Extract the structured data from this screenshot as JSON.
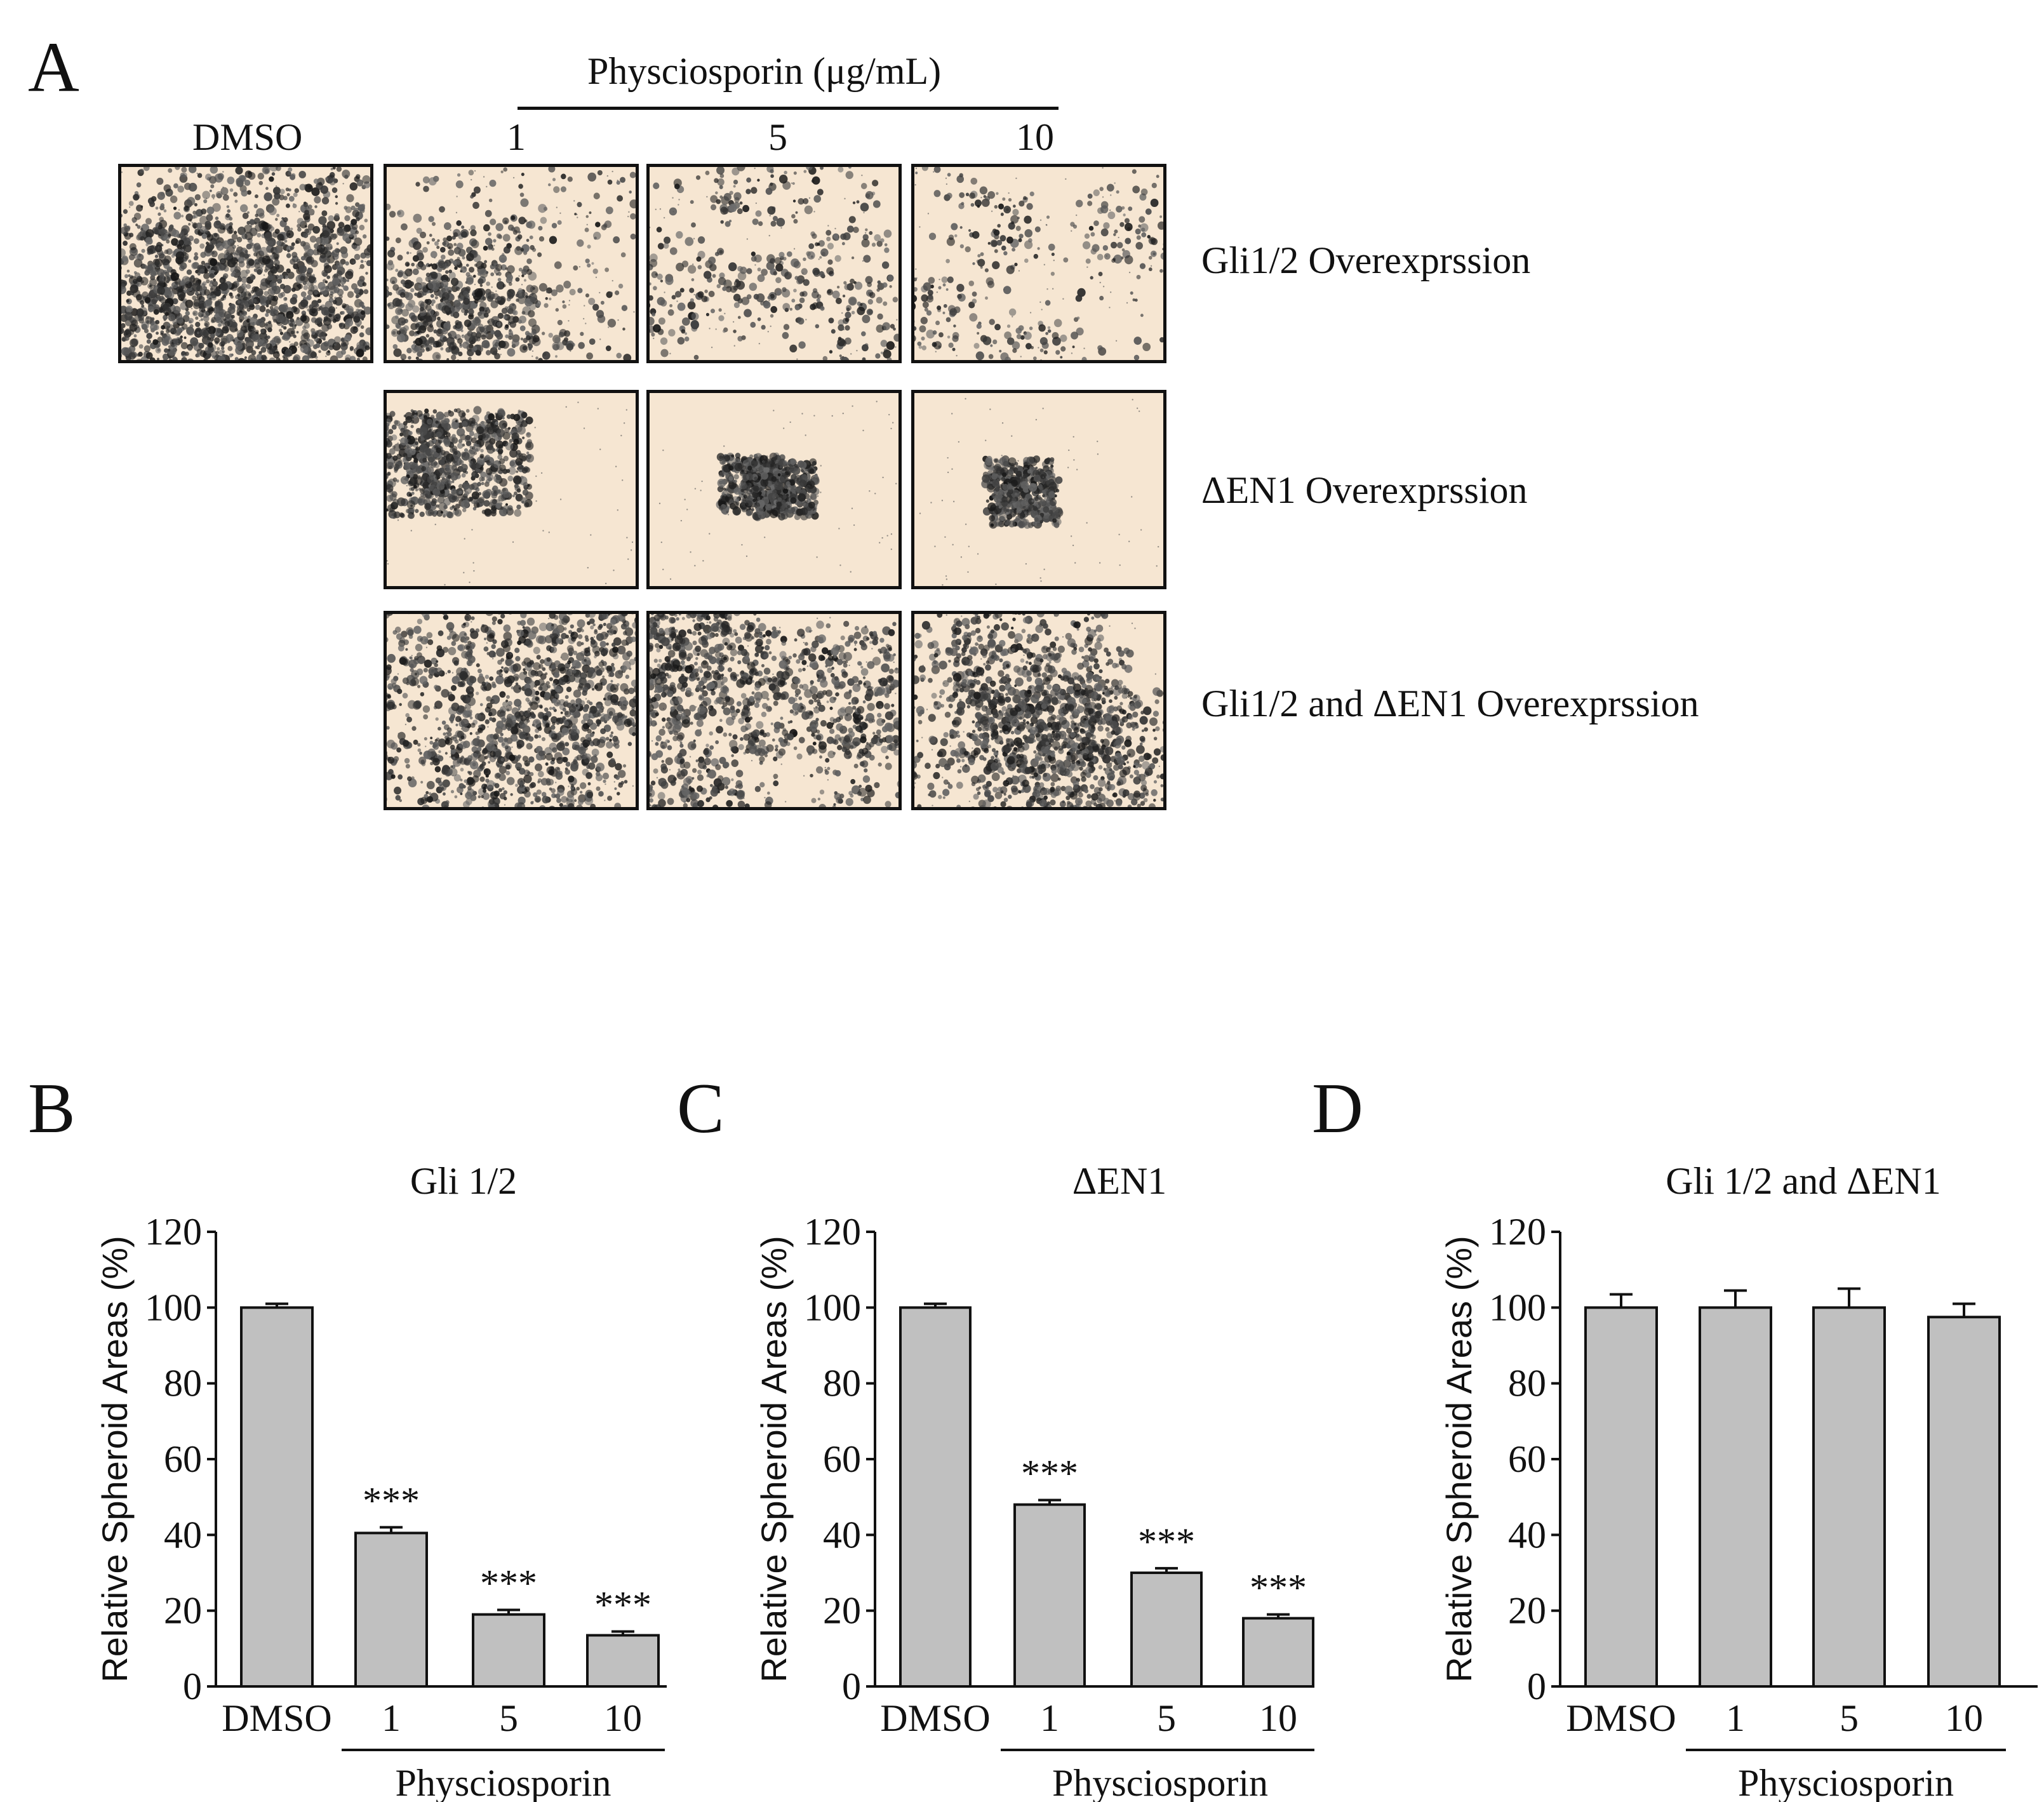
{
  "panels": {
    "A": {
      "letter": "A",
      "header": "Physciosporin (μg/mL)",
      "columns": [
        "DMSO",
        "1",
        "5",
        "10"
      ],
      "rows": [
        {
          "label": "Gli1/2 Overexprssion",
          "density": [
            0.72,
            0.3,
            0.16,
            0.12
          ]
        },
        {
          "label": "ΔEN1 Overexprssion",
          "density": [
            null,
            0.34,
            0.24,
            0.16
          ]
        },
        {
          "label": "Gli1/2 and ΔEN1 Overexprssion",
          "density": [
            null,
            0.62,
            0.55,
            0.52
          ]
        }
      ]
    },
    "B": {
      "letter": "B"
    },
    "C": {
      "letter": "C"
    },
    "D": {
      "letter": "D"
    }
  },
  "chart_data": [
    {
      "type": "bar",
      "panel": "B",
      "title": "Gli 1/2",
      "ylabel": "Relative Spheroid Areas (%)",
      "xlabel": "Physciosporin",
      "categories": [
        "DMSO",
        "1",
        "5",
        "10"
      ],
      "values": [
        100,
        40.5,
        19,
        13.5
      ],
      "errors": [
        1,
        1.5,
        1.2,
        1
      ],
      "annotations": [
        "",
        "***",
        "***",
        "***"
      ],
      "yticks": [
        "0",
        "20",
        "40",
        "60",
        "80",
        "100",
        "120"
      ],
      "ylim": [
        0,
        120
      ],
      "bar_color": "#c0c0c0"
    },
    {
      "type": "bar",
      "panel": "C",
      "title": "ΔEN1",
      "ylabel": "Relative Spheroid Areas (%)",
      "xlabel": "Physciosporin",
      "categories": [
        "DMSO",
        "1",
        "5",
        "10"
      ],
      "values": [
        100,
        48,
        30,
        18
      ],
      "errors": [
        1,
        1.2,
        1.2,
        1
      ],
      "annotations": [
        "",
        "***",
        "***",
        "***"
      ],
      "yticks": [
        "0",
        "20",
        "40",
        "60",
        "80",
        "100",
        "120"
      ],
      "ylim": [
        0,
        120
      ],
      "bar_color": "#c0c0c0"
    },
    {
      "type": "bar",
      "panel": "D",
      "title": "Gli 1/2 and ΔEN1",
      "ylabel": "Relative Spheroid Areas (%)",
      "xlabel": "Physciosporin",
      "categories": [
        "DMSO",
        "1",
        "5",
        "10"
      ],
      "values": [
        100,
        100,
        100,
        97.5
      ],
      "errors": [
        3.5,
        4.5,
        5,
        3.5
      ],
      "annotations": [
        "",
        "",
        "",
        ""
      ],
      "yticks": [
        "0",
        "20",
        "40",
        "60",
        "80",
        "100",
        "120"
      ],
      "ylim": [
        0,
        120
      ],
      "bar_color": "#c0c0c0"
    }
  ]
}
